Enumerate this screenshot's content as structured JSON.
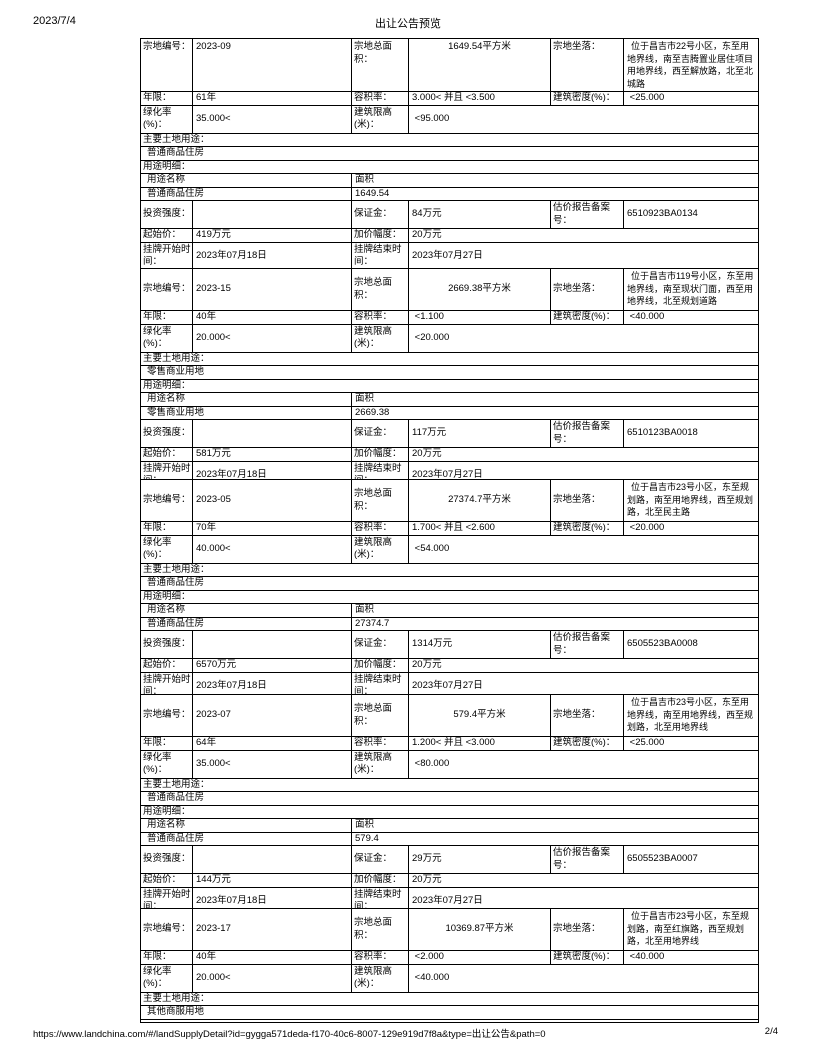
{
  "header": {
    "date": "2023/7/4",
    "title": "出让公告预览"
  },
  "footer": {
    "url": "https://www.landchina.com/#/landSupplyDetail?id=gygga571deda-f170-40c6-8007-129e919d7f8a&type=出让公告&path=0",
    "page": "2/4"
  },
  "labels": {
    "parcel_id": "宗地编号：",
    "total_area": "宗地总面积：",
    "location": "宗地坐落：",
    "term": "年限：",
    "far": "容积率：",
    "density": "建筑密度(%)：",
    "green": "绿化率(%)：",
    "height": "建筑限高\n(米)：",
    "main_use": "主要土地用途：",
    "use_detail": "用途明细：",
    "use_name": "用途名称",
    "use_area": "面积",
    "investment": "投资强度：",
    "deposit": "保证金：",
    "valuation": "估价报告备案\n号：",
    "start_price": "起始价：",
    "increment": "加价幅度：",
    "listing_start": "挂牌开始时\n间：",
    "listing_end": "挂牌结束时\n间："
  },
  "parcels": [
    {
      "id": "2023-09",
      "area": "1649.54平方米",
      "location": "位于昌吉市22号小区，东至用\n地界线，南至吉腾置业居住项目\n用地界线，西至解放路，北至北\n城路",
      "term": "61年",
      "far": "3.000< 并且 <3.500",
      "density": " <25.000",
      "green": "35.000<",
      "height_limit": " <95.000",
      "main_use": "普通商品住房",
      "use_name": "普通商品住房",
      "use_area": "1649.54",
      "investment": "",
      "deposit": "84万元",
      "valuation": "6510923BA0134",
      "start_price": "419万元",
      "increment": "20万元",
      "listing_start": "2023年07月18日",
      "listing_end": "2023年07月27日"
    },
    {
      "id": "2023-15",
      "area": "2669.38平方米",
      "location": "位于昌吉市119号小区，东至用\n地界线，南至现状门面，西至用\n地界线，北至规划道路",
      "term": "40年",
      "far": " <1.100",
      "density": " <40.000",
      "green": "20.000<",
      "height_limit": " <20.000",
      "main_use": "零售商业用地",
      "use_name": "零售商业用地",
      "use_area": "2669.38",
      "investment": "",
      "deposit": "117万元",
      "valuation": "6510123BA0018",
      "start_price": "581万元",
      "increment": "20万元",
      "listing_start": "2023年07月18日",
      "listing_end": "2023年07月27日"
    },
    {
      "id": "2023-05",
      "area": "27374.7平方米",
      "location": "位于昌吉市23号小区，东至规\n划路，南至用地界线，西至规划\n路，北至民主路",
      "term": "70年",
      "far": "1.700< 并且 <2.600",
      "density": " <20.000",
      "green": "40.000<",
      "height_limit": " <54.000",
      "main_use": "普通商品住房",
      "use_name": "普通商品住房",
      "use_area": "27374.7",
      "investment": "",
      "deposit": "1314万元",
      "valuation": "6505523BA0008",
      "start_price": "6570万元",
      "increment": "20万元",
      "listing_start": "2023年07月18日",
      "listing_end": "2023年07月27日"
    },
    {
      "id": "2023-07",
      "area": "579.4平方米",
      "location": "位于昌吉市23号小区，东至用\n地界线，南至用地界线，西至规\n划路，北至用地界线",
      "term": "64年",
      "far": "1.200< 并且 <3.000",
      "density": " <25.000",
      "green": "35.000<",
      "height_limit": " <80.000",
      "main_use": "普通商品住房",
      "use_name": "普通商品住房",
      "use_area": "579.4",
      "investment": "",
      "deposit": "29万元",
      "valuation": "6505523BA0007",
      "start_price": "144万元",
      "increment": "20万元",
      "listing_start": "2023年07月18日",
      "listing_end": "2023年07月27日"
    },
    {
      "id": "2023-17",
      "area": "10369.87平方米",
      "location": "位于昌吉市23号小区，东至规\n划路，南至红旗路，西至规划\n路，北至用地界线",
      "term": "40年",
      "far": " <2.000",
      "density": " <40.000",
      "green": "20.000<",
      "height_limit": " <40.000",
      "main_use": "其他商服用地"
    }
  ]
}
